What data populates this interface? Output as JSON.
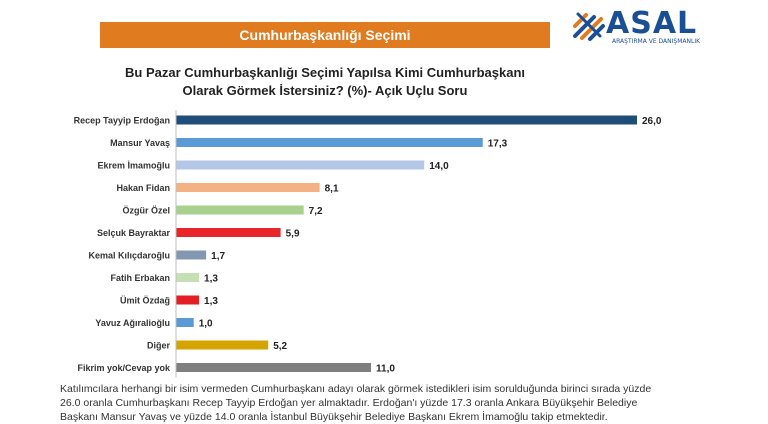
{
  "header": {
    "title": "Cumhurbaşkanlığı Seçimi"
  },
  "logo": {
    "name": "ASAL",
    "tagline": "ARAŞTIRMA VE DANIŞMANLIK",
    "icon": "asal-logo-icon",
    "color": "#1a4f96",
    "accent": "#e07b1f"
  },
  "chart_data": {
    "type": "bar",
    "orientation": "horizontal",
    "title_lines": [
      "Bu Pazar Cumhurbaşkanlığı Seçimi Yapılsa Kimi Cumhurbaşkanı",
      "Olarak Görmek İstersiniz? (%)- Açık Uçlu Soru"
    ],
    "categories": [
      "Recep Tayyip Erdoğan",
      "Mansur Yavaş",
      "Ekrem İmamoğlu",
      "Hakan Fidan",
      "Özgür Özel",
      "Selçuk Bayraktar",
      "Kemal Kılıçdaroğlu",
      "Fatih Erbakan",
      "Ümit Özdağ",
      "Yavuz Ağıralioğlu",
      "Diğer",
      "Fikrim yok/Cevap yok"
    ],
    "values": [
      26.0,
      17.3,
      14.0,
      8.1,
      7.2,
      5.9,
      1.7,
      1.3,
      1.3,
      1.0,
      5.2,
      11.0
    ],
    "value_labels": [
      "26,0",
      "17,3",
      "14,0",
      "8,1",
      "7,2",
      "5,9",
      "1,7",
      "1,3",
      "1,3",
      "1,0",
      "5,2",
      "11,0"
    ],
    "colors": [
      "#1f4e79",
      "#5b9bd5",
      "#b4c7e7",
      "#f4b183",
      "#a9d18e",
      "#e8262a",
      "#8497b0",
      "#c5e0b4",
      "#e31e24",
      "#5b9bd5",
      "#d6a400",
      "#7f7f7f"
    ],
    "xlim": [
      0,
      26
    ],
    "grid": false,
    "legend": "none"
  },
  "footnote": {
    "lines": [
      "Katılımcılara herhangi bir isim vermeden Cumhurbaşkanı adayı olarak görmek istedikleri isim sorulduğunda birinci sırada yüzde",
      "26.0 oranla Cumhurbaşkanı Recep Tayyip Erdoğan yer almaktadır. Erdoğan'ı yüzde 17.3 oranla Ankara Büyükşehir Belediye",
      "Başkanı Mansur Yavaş ve yüzde 14.0 oranla İstanbul Büyükşehir Belediye Başkanı Ekrem İmamoğlu takip etmektedir."
    ]
  }
}
